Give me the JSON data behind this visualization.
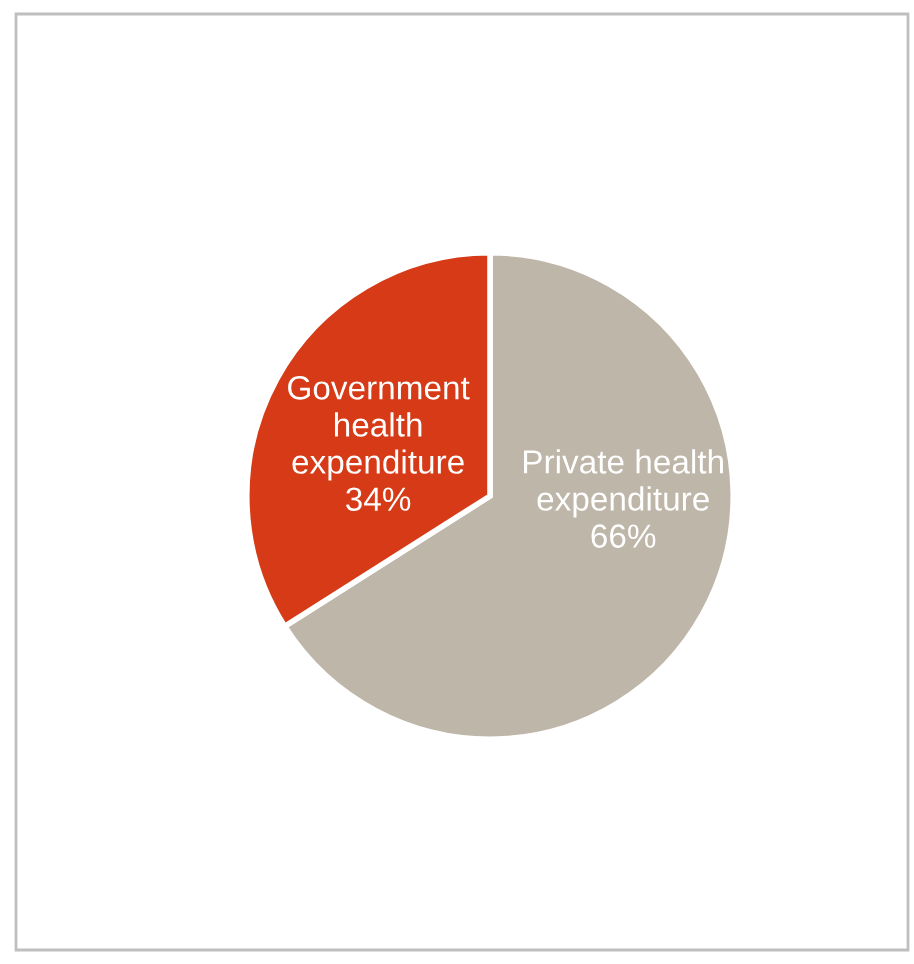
{
  "chart_data": {
    "type": "pie",
    "categories": [
      "Private health\nexpenditure",
      "Government\nhealth\nexpenditure"
    ],
    "values": [
      66,
      34
    ],
    "value_labels": [
      "66%",
      "34%"
    ],
    "colors": [
      "#beb6a9",
      "#d63a16"
    ],
    "legend": false
  }
}
